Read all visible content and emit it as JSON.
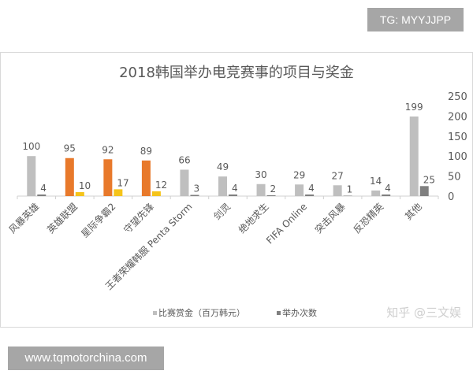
{
  "overlay_tag": "TG: MYYJJPP",
  "footer_url": "www.tqmotorchina.com",
  "watermark": "知乎 @三文娱",
  "chart_data": {
    "type": "bar",
    "title": "2018韩国举办电竞赛事的项目与奖金",
    "categories": [
      "风暴英雄",
      "英雄联盟",
      "星际争霸2",
      "守望先锋",
      "王者荣耀韩服 Penta Storm",
      "剑灵",
      "绝地求生",
      "FIFA Online",
      "突击风暴",
      "反恐精英",
      "其他"
    ],
    "series": [
      {
        "name": "比赛赏金（百万韩元）",
        "values": [
          100,
          95,
          92,
          89,
          66,
          49,
          30,
          29,
          27,
          14,
          199
        ]
      },
      {
        "name": "举办次数",
        "values": [
          4,
          10,
          17,
          12,
          3,
          4,
          2,
          4,
          1,
          4,
          25
        ]
      }
    ],
    "highlighted_categories": [
      "英雄联盟",
      "星际争霸2",
      "守望先锋"
    ],
    "y_axis": {
      "position": "right",
      "ylim": [
        0,
        250
      ],
      "ticks": [
        "0",
        "50",
        "100",
        "150",
        "200",
        "250"
      ]
    },
    "grid": false,
    "legend": "bottom",
    "colors": {
      "prize": "#bfbfbf",
      "count": "#7f7f7f",
      "prize_highlight": "#e8792b",
      "count_highlight": "#f5c41a"
    }
  }
}
